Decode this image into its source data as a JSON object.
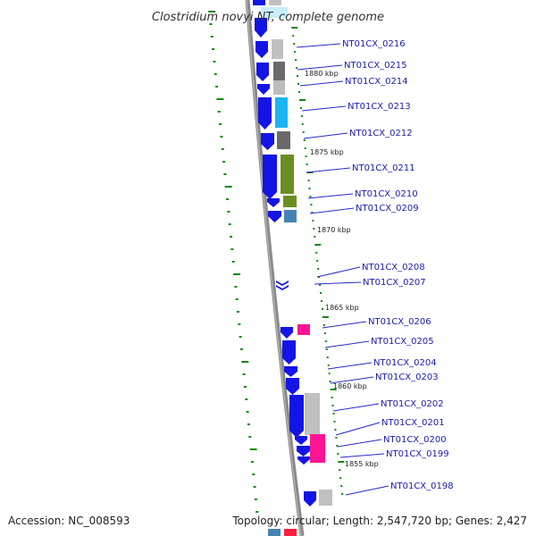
{
  "title": "Clostridium novyi NT, complete genome",
  "footer": {
    "accession": "Accession: NC_008593",
    "topology": "Topology: circular; Length: 2,547,720 bp; Genes: 2,427"
  },
  "colors": {
    "backbone": "#8a8a8a",
    "cds_strand": "#1414e6",
    "label": "#1a1aa8",
    "leader": "#2828cc",
    "gc_tick": "#118811"
  },
  "kbp_marks": [
    "1880 kbp",
    "1875 kbp",
    "1870 kbp",
    "1865 kbp",
    "1860 kbp",
    "1855 kbp"
  ],
  "genes": [
    {
      "locus": "NT01CX_0216"
    },
    {
      "locus": "NT01CX_0215"
    },
    {
      "locus": "NT01CX_0214"
    },
    {
      "locus": "NT01CX_0213"
    },
    {
      "locus": "NT01CX_0212"
    },
    {
      "locus": "NT01CX_0211"
    },
    {
      "locus": "NT01CX_0210"
    },
    {
      "locus": "NT01CX_0209"
    },
    {
      "locus": "NT01CX_0208"
    },
    {
      "locus": "NT01CX_0207"
    },
    {
      "locus": "NT01CX_0206"
    },
    {
      "locus": "NT01CX_0205"
    },
    {
      "locus": "NT01CX_0204"
    },
    {
      "locus": "NT01CX_0203"
    },
    {
      "locus": "NT01CX_0202"
    },
    {
      "locus": "NT01CX_0201"
    },
    {
      "locus": "NT01CX_0200"
    },
    {
      "locus": "NT01CX_0199"
    },
    {
      "locus": "NT01CX_0198"
    }
  ]
}
